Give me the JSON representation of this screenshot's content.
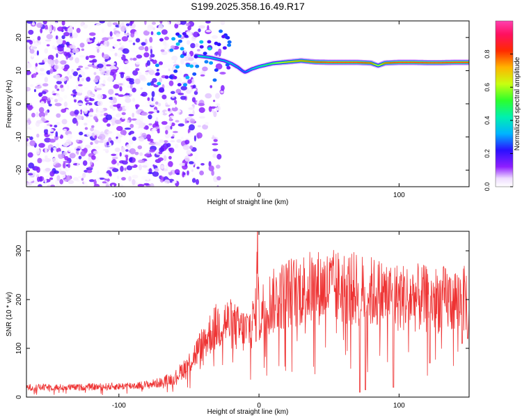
{
  "title": "S199.2025.358.16.49.R17",
  "chart_data": [
    {
      "type": "heatmap",
      "xlabel": "Height of straight line (km)",
      "ylabel": "Frequency (Hz)",
      "xlim": [
        -166,
        150
      ],
      "ylim": [
        -25,
        25
      ],
      "x_ticks": [
        -100,
        0,
        100
      ],
      "y_ticks": [
        -20,
        -10,
        0,
        10,
        20
      ],
      "colorbar": {
        "label": "Normalized spectral amplitude",
        "range": [
          0,
          1
        ],
        "ticks": [
          "0.0",
          "0.2",
          "0.4",
          "0.6",
          "0.8"
        ],
        "colormap": "rainbow (purple-blue-cyan-green-yellow-red-magenta)"
      },
      "ridge_frequency": {
        "x": [
          -45,
          -35,
          -25,
          -20,
          -15,
          -12,
          -10,
          -5,
          0,
          10,
          20,
          30,
          40,
          50,
          60,
          70,
          80,
          85,
          90,
          100,
          110,
          120,
          130,
          140,
          150
        ],
        "y": [
          14.5,
          14,
          13,
          12.2,
          11,
          10,
          9.5,
          10.5,
          11.2,
          12.2,
          12.6,
          13,
          12.6,
          12.5,
          12.5,
          12.5,
          12.3,
          11.5,
          12.3,
          12.5,
          12.5,
          12.4,
          12.4,
          12.5,
          12.5
        ]
      },
      "ridge_amplitude": {
        "x": [
          -45,
          -35,
          -25,
          -20,
          -15,
          -12,
          -10,
          -5,
          0,
          10,
          20,
          30,
          40,
          50,
          60,
          70,
          80,
          85,
          90,
          100,
          110,
          120,
          130,
          140,
          150
        ],
        "y": [
          0.45,
          0.4,
          0.35,
          0.4,
          0.35,
          0.3,
          0.3,
          0.4,
          0.45,
          0.55,
          0.7,
          0.75,
          0.8,
          0.85,
          0.85,
          0.85,
          0.8,
          0.6,
          0.8,
          0.85,
          0.85,
          0.85,
          0.85,
          0.85,
          0.85
        ]
      },
      "noise_region": {
        "x_range": [
          -166,
          -45
        ],
        "y_range": [
          -25,
          25
        ],
        "amplitude_range": [
          0,
          0.2
        ]
      }
    },
    {
      "type": "line",
      "xlabel": "Height of straight line (km)",
      "ylabel": "SNR (10 * v/v)",
      "xlim": [
        -166,
        150
      ],
      "ylim": [
        0,
        340
      ],
      "x_ticks": [
        -100,
        0,
        100
      ],
      "y_ticks": [
        0,
        100,
        200,
        300
      ],
      "color": "#ee3333",
      "envelope": {
        "x": [
          -166,
          -130,
          -100,
          -80,
          -70,
          -60,
          -55,
          -50,
          -45,
          -40,
          -35,
          -30,
          -25,
          -20,
          -15,
          -10,
          -5,
          -2,
          -1,
          0,
          2,
          5,
          10,
          15,
          20,
          25,
          30,
          40,
          50,
          60,
          70,
          80,
          90,
          100,
          110,
          120,
          130,
          140,
          150
        ],
        "y": [
          20,
          20,
          22,
          25,
          30,
          40,
          55,
          70,
          90,
          110,
          130,
          145,
          155,
          150,
          140,
          135,
          150,
          170,
          330,
          150,
          175,
          190,
          195,
          205,
          215,
          215,
          220,
          225,
          225,
          225,
          220,
          215,
          210,
          205,
          205,
          200,
          200,
          200,
          200
        ]
      },
      "dropouts": {
        "x": [
          72,
          76,
          96,
          122,
          145,
          149
        ],
        "y": [
          10,
          15,
          20,
          70,
          110,
          120
        ]
      }
    }
  ],
  "colors": {
    "snr_line": "#ee3333",
    "frame": "#000000",
    "background": "#ffffff"
  }
}
